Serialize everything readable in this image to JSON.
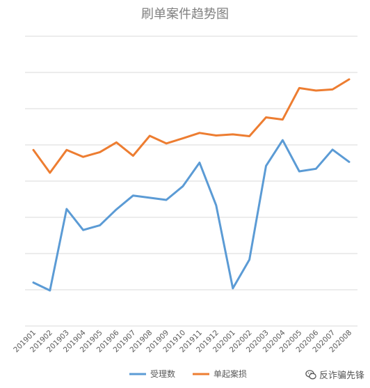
{
  "chart_data": {
    "type": "line",
    "title": "刷单案件趋势图",
    "xlabel": "",
    "ylabel": "",
    "ylim": [
      0,
      8
    ],
    "grid": true,
    "legend_position": "bottom",
    "categories": [
      "201901",
      "201902",
      "201903",
      "201904",
      "201905",
      "201906",
      "201907",
      "201908",
      "201909",
      "201910",
      "201911",
      "201912",
      "202001",
      "202002",
      "202003",
      "202004",
      "202005",
      "202006",
      "202007",
      "202008"
    ],
    "series": [
      {
        "name": "受理数",
        "color": "#5b9bd5",
        "values": [
          1.2,
          0.98,
          3.23,
          2.65,
          2.78,
          3.22,
          3.6,
          3.54,
          3.48,
          3.86,
          4.51,
          3.33,
          1.04,
          1.83,
          4.42,
          5.13,
          4.27,
          4.34,
          4.87,
          4.53
        ]
      },
      {
        "name": "单起案损",
        "color": "#ed7d31",
        "values": [
          4.86,
          4.23,
          4.86,
          4.67,
          4.8,
          5.07,
          4.7,
          5.25,
          5.04,
          5.18,
          5.33,
          5.26,
          5.29,
          5.24,
          5.76,
          5.7,
          6.57,
          6.5,
          6.53,
          6.81
        ]
      }
    ]
  },
  "watermark": {
    "text": "反诈骗先锋",
    "icon": "wechat-chat-icon"
  }
}
